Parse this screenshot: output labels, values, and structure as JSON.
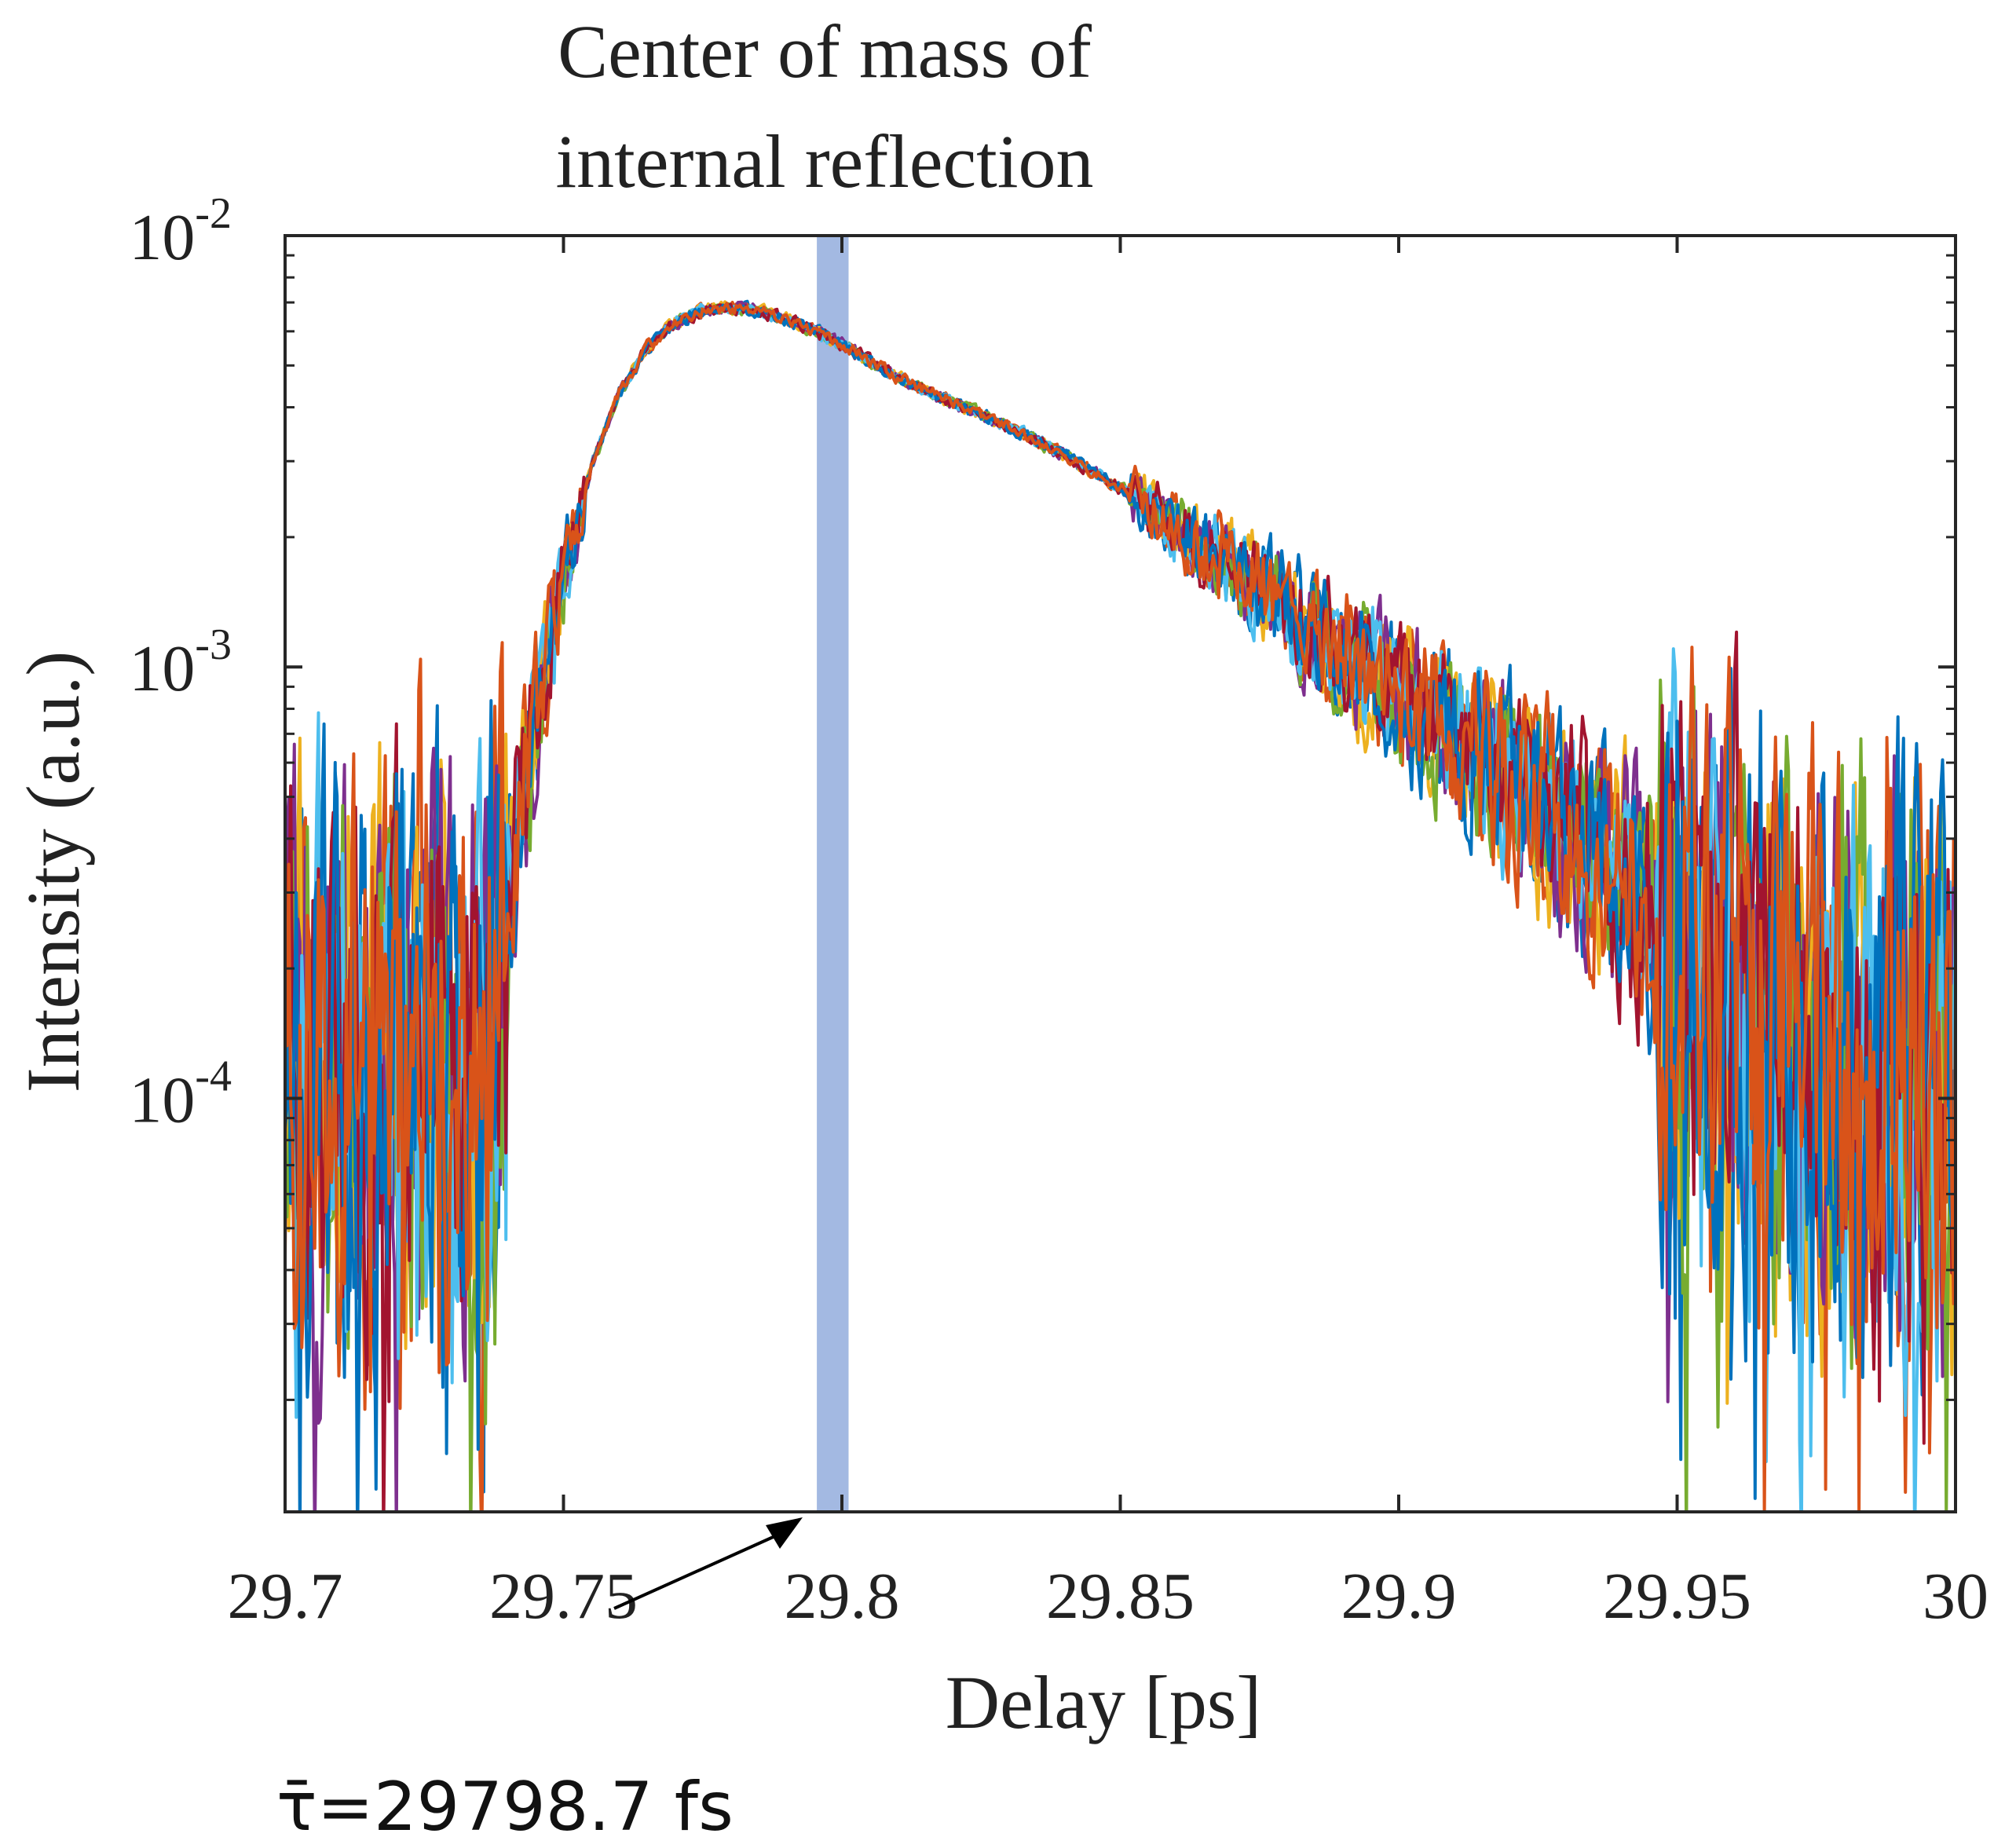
{
  "chart_data": {
    "type": "line",
    "title": "Center of mass of internal reflection",
    "title_lines": [
      "Center of mass of",
      "internal reflection"
    ],
    "xlabel": "Delay [ps]",
    "ylabel": "Intensity (a.u.)",
    "xlim": [
      29.7,
      30.0
    ],
    "ylim": [
      1.1e-05,
      0.01
    ],
    "yscale": "log",
    "grid": false,
    "x_ticks": [
      {
        "value": 29.7,
        "label": "29.7"
      },
      {
        "value": 29.75,
        "label": "29.75"
      },
      {
        "value": 29.8,
        "label": "29.8"
      },
      {
        "value": 29.85,
        "label": "29.85"
      },
      {
        "value": 29.9,
        "label": "29.9"
      },
      {
        "value": 29.95,
        "label": "29.95"
      },
      {
        "value": 30.0,
        "label": "30"
      }
    ],
    "y_ticks": [
      {
        "value": 0.0001,
        "base": "10",
        "exp": "-4"
      },
      {
        "value": 0.001,
        "base": "10",
        "exp": "-3"
      },
      {
        "value": 0.01,
        "base": "10",
        "exp": "-2"
      }
    ],
    "highlight_band": {
      "x_start": 29.7955,
      "x_end": 29.8012,
      "color": "#A3B9E2"
    },
    "annotation": {
      "text": "τ̄=29798.7 fs",
      "points_to_x": 29.7987
    },
    "envelope": {
      "x": [
        29.7,
        29.735,
        29.74,
        29.745,
        29.75,
        29.755,
        29.76,
        29.765,
        29.77,
        29.775,
        29.78,
        29.785,
        29.79,
        29.795,
        29.8,
        29.81,
        29.82,
        29.83,
        29.84,
        29.85,
        29.86,
        29.87,
        29.88,
        29.89,
        29.9,
        29.91,
        29.92,
        29.93,
        29.94,
        29.95,
        29.96,
        29.97,
        29.98,
        29.99,
        30.0
      ],
      "y": [
        0.00012,
        0.00012,
        0.00028,
        0.00075,
        0.0016,
        0.0029,
        0.0043,
        0.0055,
        0.0063,
        0.0067,
        0.0068,
        0.0067,
        0.0064,
        0.006,
        0.0056,
        0.0047,
        0.0041,
        0.0036,
        0.0031,
        0.0026,
        0.0021,
        0.0017,
        0.00135,
        0.00108,
        0.00088,
        0.0007,
        0.00055,
        0.00042,
        0.00032,
        0.00024,
        0.00018,
        0.00014,
        0.00012,
        0.00012,
        0.00012
      ]
    },
    "series": [
      {
        "color": "#0072BD"
      },
      {
        "color": "#D95319"
      },
      {
        "color": "#EDB120"
      },
      {
        "color": "#7E2F8E"
      },
      {
        "color": "#77AC30"
      },
      {
        "color": "#4DBEEE"
      },
      {
        "color": "#A2142F"
      },
      {
        "color": "#0072BD"
      },
      {
        "color": "#D95319"
      }
    ]
  }
}
